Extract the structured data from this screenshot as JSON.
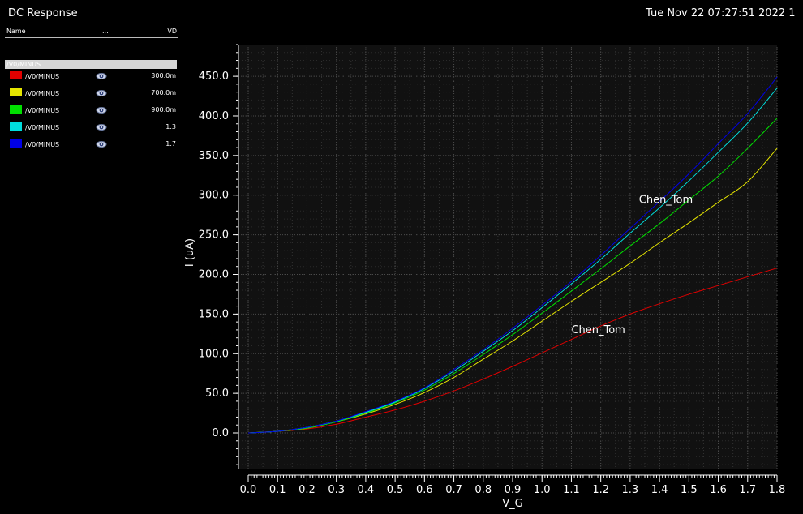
{
  "window": {
    "title": "DC Response",
    "timestamp": "Tue Nov 22 07:27:51 2022  1"
  },
  "legend": {
    "header": {
      "name": "Name",
      "dots": "...",
      "vd": "VD"
    },
    "group": "/V0/MINUS",
    "items": [
      {
        "signal": "/V0/MINUS",
        "value": "300.0m",
        "color": "#e00000",
        "icon": "eye-icon"
      },
      {
        "signal": "/V0/MINUS",
        "value": "700.0m",
        "color": "#e6e600",
        "icon": "eye-icon"
      },
      {
        "signal": "/V0/MINUS",
        "value": "900.0m",
        "color": "#00e000",
        "icon": "eye-icon"
      },
      {
        "signal": "/V0/MINUS",
        "value": "1.3",
        "color": "#00dcdc",
        "icon": "eye-icon"
      },
      {
        "signal": "/V0/MINUS",
        "value": "1.7",
        "color": "#0000e6",
        "icon": "eye-icon"
      }
    ]
  },
  "chart_data": {
    "type": "line",
    "xlabel": "V_G",
    "ylabel": "I (uA)",
    "xlim": [
      0,
      1.8
    ],
    "ylim": [
      -45,
      490
    ],
    "xticks": [
      "0.0",
      "0.1",
      "0.2",
      "0.3",
      "0.4",
      "0.5",
      "0.6",
      "0.7",
      "0.8",
      "0.9",
      "1.0",
      "1.1",
      "1.2",
      "1.3",
      "1.4",
      "1.5",
      "1.6",
      "1.7",
      "1.8"
    ],
    "yticks": [
      "0.0",
      "50.0",
      "100.0",
      "150.0",
      "200.0",
      "250.0",
      "300.0",
      "350.0",
      "400.0",
      "450.0"
    ],
    "grid": true,
    "annotations": [
      {
        "text": "Chen_Tom",
        "x": 1.1,
        "y": 126
      },
      {
        "text": "Chen_Tom",
        "x": 1.33,
        "y": 290
      }
    ],
    "x": [
      0,
      0.1,
      0.2,
      0.3,
      0.4,
      0.5,
      0.6,
      0.7,
      0.8,
      0.9,
      1.0,
      1.1,
      1.2,
      1.3,
      1.4,
      1.5,
      1.6,
      1.7,
      1.8
    ],
    "series": [
      {
        "name": "300.0m",
        "color": "#e00000",
        "values": [
          0,
          2,
          5,
          11,
          20,
          29,
          40,
          53,
          68,
          84,
          101,
          118,
          135,
          150,
          163,
          175,
          186,
          197,
          208
        ]
      },
      {
        "name": "700.0m",
        "color": "#e6e600",
        "values": [
          0,
          2,
          6,
          14,
          24,
          36,
          51,
          70,
          93,
          116,
          141,
          166,
          190,
          214,
          240,
          265,
          291,
          317,
          359
        ]
      },
      {
        "name": "900.0m",
        "color": "#00e000",
        "values": [
          0,
          2,
          6,
          14,
          25,
          38,
          54,
          75,
          99,
          124,
          151,
          179,
          207,
          236,
          264,
          294,
          324,
          359,
          397
        ]
      },
      {
        "name": "1.3",
        "color": "#00dcdc",
        "values": [
          0,
          2,
          7,
          15,
          26,
          39,
          56,
          78,
          103,
          129,
          158,
          188,
          219,
          252,
          284,
          318,
          354,
          391,
          435
        ]
      },
      {
        "name": "1.7",
        "color": "#0000e6",
        "values": [
          0,
          2,
          7,
          15,
          27,
          40,
          57,
          80,
          105,
          132,
          161,
          191,
          224,
          258,
          292,
          327,
          365,
          403,
          449
        ]
      }
    ]
  }
}
